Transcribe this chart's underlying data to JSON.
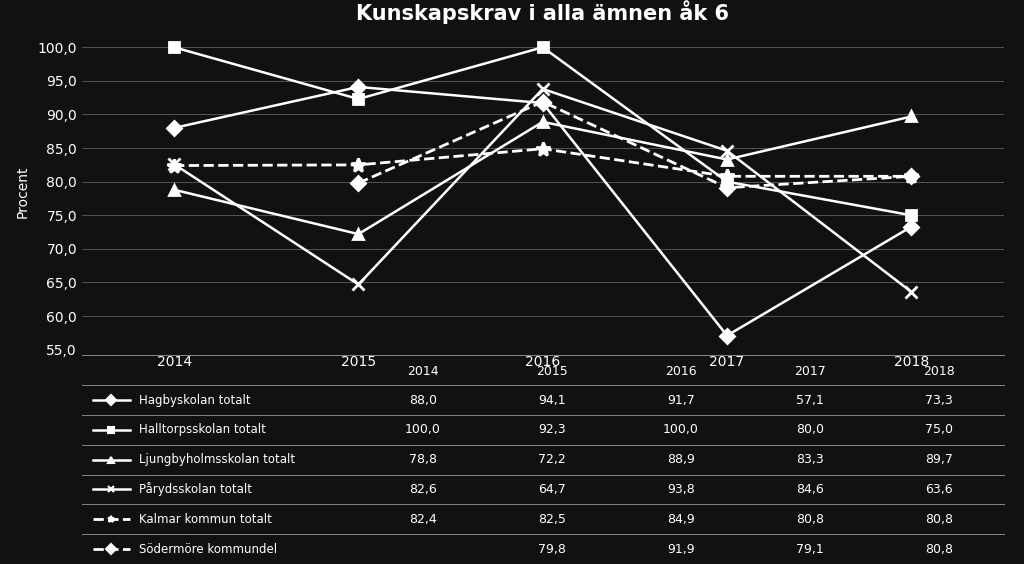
{
  "title": "Kunskapskrav i alla ämnen åk 6",
  "ylabel": "Procent",
  "years": [
    2014,
    2015,
    2016,
    2017,
    2018
  ],
  "series": [
    {
      "label": "Hagbyskolan totalt",
      "values": [
        88.0,
        94.1,
        91.7,
        57.1,
        73.3
      ],
      "color": "white",
      "linestyle": "-",
      "marker": "D",
      "markersize": 7,
      "linewidth": 1.8
    },
    {
      "label": "Halltorpsskolan totalt",
      "values": [
        100.0,
        92.3,
        100.0,
        80.0,
        75.0
      ],
      "color": "white",
      "linestyle": "-",
      "marker": "s",
      "markersize": 7,
      "linewidth": 1.8
    },
    {
      "label": "Ljungbyholmsskolan totalt",
      "values": [
        78.8,
        72.2,
        88.9,
        83.3,
        89.7
      ],
      "color": "white",
      "linestyle": "-",
      "marker": "^",
      "markersize": 7,
      "linewidth": 1.8
    },
    {
      "label": "Pårydsskolan totalt",
      "values": [
        82.6,
        64.7,
        93.8,
        84.6,
        63.6
      ],
      "color": "white",
      "linestyle": "-",
      "marker": "x",
      "markersize": 9,
      "linewidth": 1.8
    },
    {
      "label": "Kalmar kommun totalt",
      "values": [
        82.4,
        82.5,
        84.9,
        80.8,
        80.8
      ],
      "color": "white",
      "linestyle": "--",
      "marker": "*",
      "markersize": 10,
      "linewidth": 2.0
    },
    {
      "label": "Södermöre kommundel",
      "values": [
        null,
        79.8,
        91.9,
        79.1,
        80.8
      ],
      "color": "white",
      "linestyle": "--",
      "marker": "D",
      "markersize": 7,
      "linewidth": 2.0
    }
  ],
  "ylim": [
    55.0,
    102.0
  ],
  "yticks": [
    55.0,
    60.0,
    65.0,
    70.0,
    75.0,
    80.0,
    85.0,
    90.0,
    95.0,
    100.0
  ],
  "background_color": "#111111",
  "grid_color": "#555555",
  "text_color": "white",
  "table_rows": [
    [
      "Hagbyskolan totalt",
      "88,0",
      "94,1",
      "91,7",
      "57,1",
      "73,3"
    ],
    [
      "Halltorpsskolan totalt",
      "100,0",
      "92,3",
      "100,0",
      "80,0",
      "75,0"
    ],
    [
      "Ljungbyholmsskolan totalt",
      "78,8",
      "72,2",
      "88,9",
      "83,3",
      "89,7"
    ],
    [
      "Pårydsskolan totalt",
      "82,6",
      "64,7",
      "93,8",
      "84,6",
      "63,6"
    ],
    [
      "Kalmar kommun totalt",
      "82,4",
      "82,5",
      "84,9",
      "80,8",
      "80,8"
    ],
    [
      "Södermöre kommundel",
      "",
      "79,8",
      "91,9",
      "79,1",
      "80,8"
    ]
  ],
  "table_cols": [
    "",
    "2014",
    "2015",
    "2016",
    "2017",
    "2018"
  ],
  "col_widths": [
    0.3,
    0.14,
    0.14,
    0.14,
    0.14,
    0.14
  ]
}
